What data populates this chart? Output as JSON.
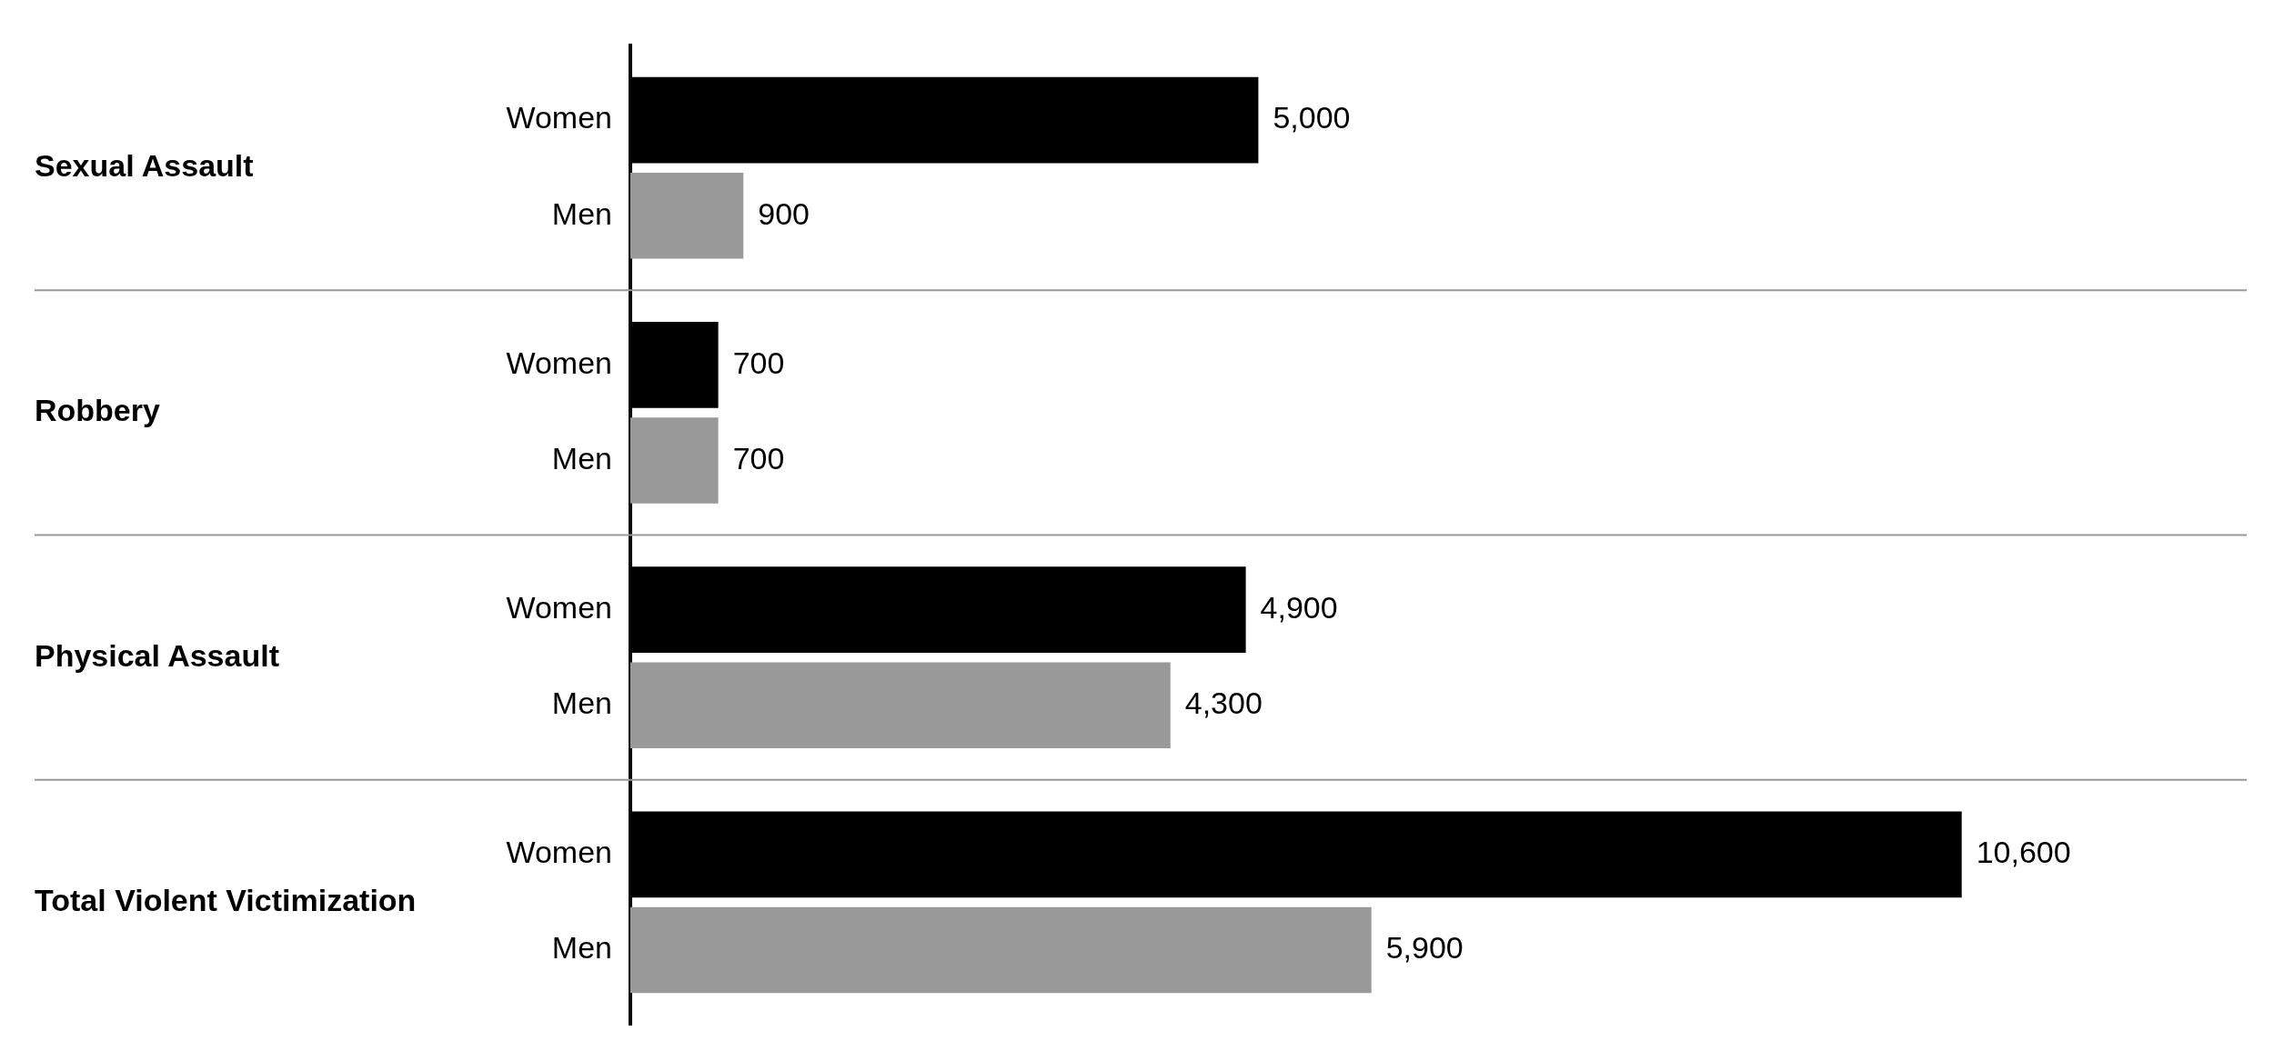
{
  "chart_data": {
    "type": "bar",
    "orientation": "horizontal",
    "categories": [
      "Sexual Assault",
      "Robbery",
      "Physical Assault",
      "Total Violent Victimization"
    ],
    "series": [
      {
        "name": "Women",
        "color": "#000000",
        "values": [
          5000,
          700,
          4900,
          10600
        ],
        "value_labels": [
          "5,000",
          "700",
          "4,900",
          "10,600"
        ]
      },
      {
        "name": "Men",
        "color": "#999999",
        "values": [
          900,
          700,
          4300,
          5900
        ],
        "value_labels": [
          "900",
          "700",
          "4,300",
          "5,900"
        ]
      }
    ],
    "grid": "y",
    "tick_labels": "y"
  }
}
